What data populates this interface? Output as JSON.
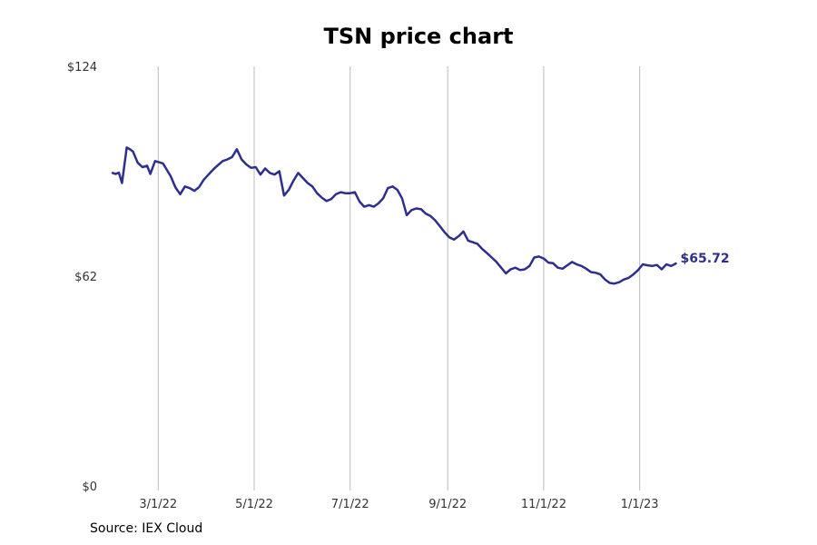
{
  "title": "TSN price chart",
  "source": "Source: IEX Cloud",
  "colors": {
    "line": "#2e2e8f",
    "grid": "#bbbbbb",
    "text": "#333333"
  },
  "chart_data": {
    "type": "line",
    "title": "TSN price chart",
    "xlabel": "",
    "ylabel": "",
    "ylim": [
      0,
      124
    ],
    "y_ticks": [
      {
        "value": 0,
        "label": "$0"
      },
      {
        "value": 62,
        "label": "$62"
      },
      {
        "value": 124,
        "label": "$124"
      }
    ],
    "x_ticks": [
      {
        "date": "2022-03-01",
        "label": "3/1/22"
      },
      {
        "date": "2022-05-01",
        "label": "5/1/22"
      },
      {
        "date": "2022-07-01",
        "label": "7/1/22"
      },
      {
        "date": "2022-09-01",
        "label": "9/1/22"
      },
      {
        "date": "2022-11-01",
        "label": "11/1/22"
      },
      {
        "date": "2023-01-01",
        "label": "1/1/23"
      }
    ],
    "xlim": [
      "2022-01-31",
      "2023-02-25"
    ],
    "grid": "vertical",
    "end_label": "$65.72",
    "series": [
      {
        "values": [
          [
            "2022-01-31",
            92.5
          ],
          [
            "2022-02-02",
            92.2
          ],
          [
            "2022-02-04",
            92.6
          ],
          [
            "2022-02-06",
            89.5
          ],
          [
            "2022-02-09",
            100.0
          ],
          [
            "2022-02-11",
            99.5
          ],
          [
            "2022-02-13",
            98.8
          ],
          [
            "2022-02-16",
            95.5
          ],
          [
            "2022-02-19",
            94.2
          ],
          [
            "2022-02-22",
            94.6
          ],
          [
            "2022-02-24",
            92.2
          ],
          [
            "2022-02-27",
            96.0
          ],
          [
            "2022-03-04",
            95.3
          ],
          [
            "2022-03-06",
            93.8
          ],
          [
            "2022-03-09",
            91.5
          ],
          [
            "2022-03-12",
            88.2
          ],
          [
            "2022-03-15",
            86.2
          ],
          [
            "2022-03-18",
            88.5
          ],
          [
            "2022-03-21",
            88.0
          ],
          [
            "2022-03-24",
            87.2
          ],
          [
            "2022-03-27",
            88.3
          ],
          [
            "2022-03-30",
            90.5
          ],
          [
            "2022-04-02",
            92.0
          ],
          [
            "2022-04-05",
            93.5
          ],
          [
            "2022-04-08",
            94.8
          ],
          [
            "2022-04-11",
            96.0
          ],
          [
            "2022-04-14",
            96.5
          ],
          [
            "2022-04-17",
            97.2
          ],
          [
            "2022-04-20",
            99.5
          ],
          [
            "2022-04-23",
            96.5
          ],
          [
            "2022-04-26",
            95.0
          ],
          [
            "2022-04-29",
            94.0
          ],
          [
            "2022-05-02",
            94.2
          ],
          [
            "2022-05-05",
            92.0
          ],
          [
            "2022-05-08",
            93.8
          ],
          [
            "2022-05-11",
            92.5
          ],
          [
            "2022-05-14",
            92.0
          ],
          [
            "2022-05-17",
            93.0
          ],
          [
            "2022-05-20",
            85.8
          ],
          [
            "2022-05-23",
            87.5
          ],
          [
            "2022-05-26",
            90.2
          ],
          [
            "2022-05-29",
            92.5
          ],
          [
            "2022-06-01",
            91.0
          ],
          [
            "2022-06-04",
            89.5
          ],
          [
            "2022-06-07",
            88.5
          ],
          [
            "2022-06-10",
            86.5
          ],
          [
            "2022-06-13",
            85.2
          ],
          [
            "2022-06-16",
            84.2
          ],
          [
            "2022-06-19",
            84.8
          ],
          [
            "2022-06-22",
            86.2
          ],
          [
            "2022-06-25",
            86.8
          ],
          [
            "2022-06-28",
            86.5
          ],
          [
            "2022-07-01",
            86.5
          ],
          [
            "2022-07-04",
            86.8
          ],
          [
            "2022-07-07",
            84.0
          ],
          [
            "2022-07-10",
            82.5
          ],
          [
            "2022-07-13",
            83.0
          ],
          [
            "2022-07-16",
            82.5
          ],
          [
            "2022-07-19",
            83.5
          ],
          [
            "2022-07-22",
            85.0
          ],
          [
            "2022-07-25",
            88.0
          ],
          [
            "2022-07-28",
            88.5
          ],
          [
            "2022-07-31",
            87.5
          ],
          [
            "2022-08-03",
            85.0
          ],
          [
            "2022-08-06",
            80.0
          ],
          [
            "2022-08-09",
            81.5
          ],
          [
            "2022-08-12",
            82.0
          ],
          [
            "2022-08-15",
            81.8
          ],
          [
            "2022-08-18",
            80.5
          ],
          [
            "2022-08-21",
            79.8
          ],
          [
            "2022-08-24",
            78.5
          ],
          [
            "2022-08-27",
            76.8
          ],
          [
            "2022-08-30",
            75.0
          ],
          [
            "2022-09-02",
            73.5
          ],
          [
            "2022-09-05",
            72.8
          ],
          [
            "2022-09-08",
            73.8
          ],
          [
            "2022-09-11",
            75.2
          ],
          [
            "2022-09-14",
            72.5
          ],
          [
            "2022-09-17",
            72.0
          ],
          [
            "2022-09-20",
            71.5
          ],
          [
            "2022-09-23",
            70.0
          ],
          [
            "2022-09-26",
            68.8
          ],
          [
            "2022-09-29",
            67.5
          ],
          [
            "2022-10-02",
            66.2
          ],
          [
            "2022-10-05",
            64.5
          ],
          [
            "2022-10-08",
            62.8
          ],
          [
            "2022-10-11",
            64.0
          ],
          [
            "2022-10-14",
            64.5
          ],
          [
            "2022-10-17",
            63.8
          ],
          [
            "2022-10-20",
            64.0
          ],
          [
            "2022-10-23",
            65.0
          ],
          [
            "2022-10-26",
            67.5
          ],
          [
            "2022-10-29",
            67.8
          ],
          [
            "2022-11-01",
            67.2
          ],
          [
            "2022-11-04",
            66.0
          ],
          [
            "2022-11-07",
            65.8
          ],
          [
            "2022-11-10",
            64.5
          ],
          [
            "2022-11-13",
            64.2
          ],
          [
            "2022-11-16",
            65.2
          ],
          [
            "2022-11-19",
            66.2
          ],
          [
            "2022-11-22",
            65.5
          ],
          [
            "2022-11-25",
            65.0
          ],
          [
            "2022-11-28",
            64.2
          ],
          [
            "2022-12-01",
            63.2
          ],
          [
            "2022-12-04",
            63.0
          ],
          [
            "2022-12-07",
            62.5
          ],
          [
            "2022-12-10",
            61.0
          ],
          [
            "2022-12-13",
            60.0
          ],
          [
            "2022-12-16",
            59.8
          ],
          [
            "2022-12-19",
            60.2
          ],
          [
            "2022-12-22",
            61.0
          ],
          [
            "2022-12-25",
            61.5
          ],
          [
            "2022-12-28",
            62.5
          ],
          [
            "2022-12-31",
            63.8
          ],
          [
            "2023-01-03",
            65.5
          ],
          [
            "2023-01-06",
            65.2
          ],
          [
            "2023-01-09",
            65.0
          ],
          [
            "2023-01-12",
            65.3
          ],
          [
            "2023-01-15",
            64.0
          ],
          [
            "2023-01-18",
            65.5
          ],
          [
            "2023-01-21",
            65.0
          ],
          [
            "2023-01-24",
            65.72
          ]
        ]
      }
    ]
  }
}
